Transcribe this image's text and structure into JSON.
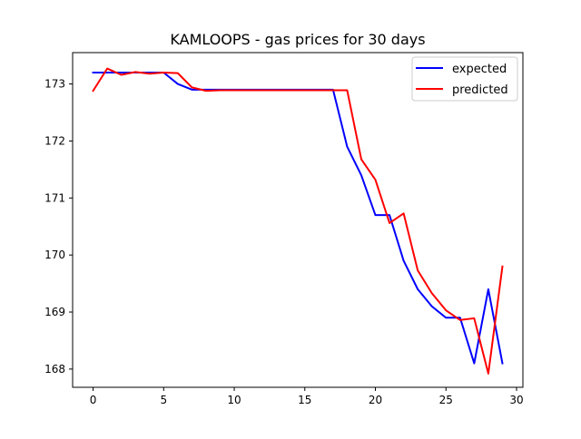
{
  "chart_data": {
    "type": "line",
    "title": "KAMLOOPS - gas prices for 30 days",
    "xlabel": "",
    "ylabel": "",
    "xlim": [
      -1.45,
      30.45
    ],
    "ylim": [
      167.68,
      173.55
    ],
    "x_ticks": [
      0,
      5,
      10,
      15,
      20,
      25,
      30
    ],
    "y_ticks": [
      168,
      169,
      170,
      171,
      172,
      173
    ],
    "grid": false,
    "legend_position": "upper right",
    "x": [
      0,
      1,
      2,
      3,
      4,
      5,
      6,
      7,
      8,
      9,
      10,
      11,
      12,
      13,
      14,
      15,
      16,
      17,
      18,
      19,
      20,
      21,
      22,
      23,
      24,
      25,
      26,
      27,
      28,
      29
    ],
    "series": [
      {
        "name": "expected",
        "color": "#0000ff",
        "values": [
          173.2,
          173.2,
          173.2,
          173.2,
          173.2,
          173.2,
          173.0,
          172.9,
          172.9,
          172.9,
          172.9,
          172.9,
          172.9,
          172.9,
          172.9,
          172.9,
          172.9,
          172.9,
          171.9,
          171.4,
          170.7,
          170.7,
          169.9,
          169.4,
          169.1,
          168.9,
          168.9,
          168.1,
          169.4,
          168.1
        ]
      },
      {
        "name": "predicted",
        "color": "#ff0000",
        "values": [
          172.88,
          173.27,
          173.16,
          173.21,
          173.18,
          173.2,
          173.19,
          172.94,
          172.88,
          172.89,
          172.89,
          172.89,
          172.89,
          172.89,
          172.89,
          172.89,
          172.89,
          172.89,
          172.89,
          171.68,
          171.32,
          170.56,
          170.73,
          169.73,
          169.33,
          169.03,
          168.86,
          168.89,
          167.92,
          169.8
        ]
      }
    ]
  }
}
